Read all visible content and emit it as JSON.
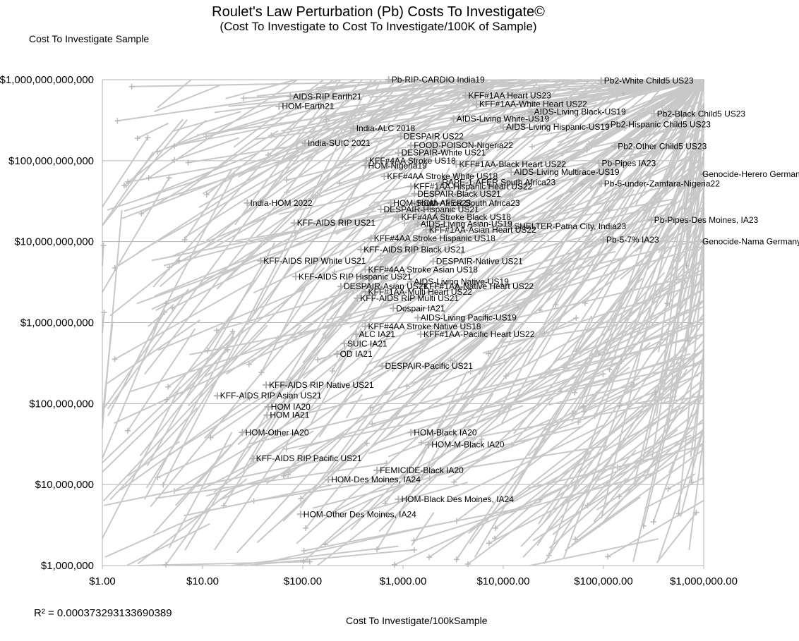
{
  "chart_data": {
    "type": "scatter",
    "title": "Roulet's Law Perturbation (Pb) Costs To Investigate©",
    "subtitle": "(Cost To Investigate to Cost To Investigate/100K of Sample)",
    "ylabel": "Cost To Investigate Sample",
    "xlabel": "Cost To Investigate/100kSample",
    "x_scale": "log",
    "y_scale": "log",
    "xlim": [
      1,
      1000000
    ],
    "ylim": [
      1000000,
      1000000000000
    ],
    "x_ticks": [
      1,
      10,
      100,
      1000,
      10000,
      100000,
      1000000
    ],
    "x_tick_labels": [
      "$1.00",
      "$10.00",
      "$100.00",
      "$1,000.00",
      "$10,000.00",
      "$100,000.00",
      "$1,000,000.00"
    ],
    "y_ticks": [
      1000000,
      10000000,
      100000000,
      1000000000,
      10000000000,
      100000000000,
      1000000000000
    ],
    "y_tick_labels": [
      "$1,000,000",
      "$10,000,000",
      "$100,000,000",
      "$1,000,000,000",
      "$10,000,000,000",
      "$100,000,000,000",
      "$1,000,000,000,000"
    ],
    "grid": true,
    "series_color": "#c8c8c8",
    "annotation": "R² = 0.000373293133690389",
    "points": [
      {
        "label": "Pb-RIP-CARDIO India19",
        "x": 720,
        "y": 1000000000000
      },
      {
        "label": "Pb2-White Child5 US23",
        "x": 95000,
        "y": 970000000000
      },
      {
        "label": "AIDS-RIP Earth21",
        "x": 75,
        "y": 620000000000
      },
      {
        "label": "KFF#1AA Heart US23",
        "x": 4200,
        "y": 640000000000
      },
      {
        "label": "KFF#1AA-White Heart US22",
        "x": 5400,
        "y": 500000000000
      },
      {
        "label": "HOM-Earth21",
        "x": 58,
        "y": 470000000000
      },
      {
        "label": "AIDS-Living Black-US19",
        "x": 19000,
        "y": 400000000000
      },
      {
        "label": "Pb2-Black Child5 US23",
        "x": 320000,
        "y": 380000000000
      },
      {
        "label": "AIDS-Living White-US19",
        "x": 3200,
        "y": 330000000000
      },
      {
        "label": "Pb2-Hispanic Child5 US23",
        "x": 110000,
        "y": 280000000000
      },
      {
        "label": "India-ALC 2018",
        "x": 320,
        "y": 250000000000
      },
      {
        "label": "AIDS-Living Hispanic-US19",
        "x": 10000,
        "y": 260000000000
      },
      {
        "label": "DESPAIR US22",
        "x": 950,
        "y": 200000000000
      },
      {
        "label": "India-SUIC 2021",
        "x": 105,
        "y": 165000000000
      },
      {
        "label": "FOOD-POISON-Nigeria22",
        "x": 1200,
        "y": 155000000000
      },
      {
        "label": "Pb2-Other Child5 US23",
        "x": 130000,
        "y": 150000000000
      },
      {
        "label": "DESPAIR-White US21",
        "x": 900,
        "y": 125000000000
      },
      {
        "label": "KFF#4AA Stroke US18",
        "x": 430,
        "y": 100000000000
      },
      {
        "label": "Pb-Pipes IA23",
        "x": 90000,
        "y": 93000000000
      },
      {
        "label": "HOM-Nigeria19",
        "x": 420,
        "y": 87000000000
      },
      {
        "label": "KFF#1AA-Black Heart US22",
        "x": 3400,
        "y": 90000000000
      },
      {
        "label": "AIDS-Living Multirace-US19",
        "x": 12000,
        "y": 72000000000
      },
      {
        "label": "KFF#4AA Stroke White US18",
        "x": 650,
        "y": 64000000000
      },
      {
        "label": "Genocide-Herero Germany",
        "x": 1000000,
        "y": 68000000000
      },
      {
        "label": "RAPE-1-AFER South Africa23",
        "x": 2300,
        "y": 54000000000
      },
      {
        "label": "Pb-5-under-Zamfara-Nigeria22",
        "x": 95000,
        "y": 52000000000
      },
      {
        "label": "KFF#1AA-Hispanic Heart US22",
        "x": 1200,
        "y": 48000000000
      },
      {
        "label": "DESPAIR-Black US21",
        "x": 1300,
        "y": 39000000000
      },
      {
        "label": "India-HOM 2022",
        "x": 28,
        "y": 30000000000
      },
      {
        "label": "HOM-South Africa23",
        "x": 750,
        "y": 30000000000
      },
      {
        "label": "HOM-AFER South Africa23",
        "x": 1300,
        "y": 30000000000
      },
      {
        "label": "DESPAIR-Hispanic US21",
        "x": 600,
        "y": 25000000000
      },
      {
        "label": "KFF#4AA Stroke Black US18",
        "x": 900,
        "y": 20000000000
      },
      {
        "label": "Pb-Pipes-Des Moines, IA23",
        "x": 300000,
        "y": 18500000000
      },
      {
        "label": "KFF-AIDS RIP US21",
        "x": 82,
        "y": 17000000000
      },
      {
        "label": "AIDS-Living Asian-US19",
        "x": 1400,
        "y": 16500000000
      },
      {
        "label": "SHELTER-Patna City, India23",
        "x": 12000,
        "y": 15500000000
      },
      {
        "label": "KFF#1AA-Asian Heart US22",
        "x": 1700,
        "y": 14000000000
      },
      {
        "label": "KFF#4AA Stroke Hispanic US18",
        "x": 480,
        "y": 11000000000
      },
      {
        "label": "Pb-5-7% IA23",
        "x": 100000,
        "y": 10500000000
      },
      {
        "label": "Genocide-Nama Germany",
        "x": 1000000,
        "y": 10000000000
      },
      {
        "label": "KFF-AIDS RIP Black US21",
        "x": 380,
        "y": 8000000000
      },
      {
        "label": "KFF-AIDS RIP White US21",
        "x": 38,
        "y": 5800000000
      },
      {
        "label": "DESPAIR-Native US21",
        "x": 2000,
        "y": 5700000000
      },
      {
        "label": "KFF#4AA Stroke Asian US18",
        "x": 420,
        "y": 4500000000
      },
      {
        "label": "KFF-AIDS RIP Hispanic US21",
        "x": 85,
        "y": 3700000000
      },
      {
        "label": "AIDS-Living Native-US19",
        "x": 1200,
        "y": 3200000000
      },
      {
        "label": "DESPAIR-Asian US21",
        "x": 240,
        "y": 2800000000
      },
      {
        "label": "KFF#1AA-Native Heart US22",
        "x": 1500,
        "y": 2800000000
      },
      {
        "label": "KFF#1AA-Multi Heart US22",
        "x": 420,
        "y": 2400000000
      },
      {
        "label": "KFF-AIDS RIP Multi US21",
        "x": 350,
        "y": 2000000000
      },
      {
        "label": "Despair IA21",
        "x": 800,
        "y": 1500000000
      },
      {
        "label": "AIDS-Living Pacific-US19",
        "x": 1400,
        "y": 1150000000
      },
      {
        "label": "KFF#4AA Stroke Native US18",
        "x": 420,
        "y": 900000000
      },
      {
        "label": "ALC IA21",
        "x": 340,
        "y": 720000000
      },
      {
        "label": "KFF#1AA-Pacific Heart US22",
        "x": 1500,
        "y": 720000000
      },
      {
        "label": "SUIC IA21",
        "x": 260,
        "y": 550000000
      },
      {
        "label": "OD IA21",
        "x": 220,
        "y": 410000000
      },
      {
        "label": "DESPAIR-Pacific US21",
        "x": 620,
        "y": 290000000
      },
      {
        "label": "KFF-AIDS RIP Native US21",
        "x": 43,
        "y": 170000000
      },
      {
        "label": "KFF-AIDS RIP Asian US21",
        "x": 14,
        "y": 125000000
      },
      {
        "label": "HOM IA20",
        "x": 45,
        "y": 91000000
      },
      {
        "label": "HOM IA21",
        "x": 44,
        "y": 72000000
      },
      {
        "label": "HOM-Other IA20",
        "x": 25,
        "y": 44000000
      },
      {
        "label": "HOM-Black IA20",
        "x": 1200,
        "y": 44000000
      },
      {
        "label": "HOM-M-Black IA20",
        "x": 1800,
        "y": 31000000
      },
      {
        "label": "KFF-AIDS RIP Pacific US21",
        "x": 32,
        "y": 21000000
      },
      {
        "label": "FEMICIDE-Black IA20",
        "x": 550,
        "y": 15000000
      },
      {
        "label": "HOM-Des Moines, IA24",
        "x": 180,
        "y": 11500000
      },
      {
        "label": "HOM-Black Des Moines, IA24",
        "x": 900,
        "y": 6600000
      },
      {
        "label": "HOM-Other Des Moines, IA24",
        "x": 95,
        "y": 4300000
      }
    ]
  }
}
